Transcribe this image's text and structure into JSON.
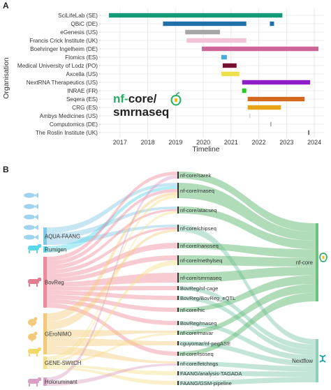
{
  "panelA": {
    "label": "A",
    "ylabel": "Organisation",
    "xlabel": "Timeline",
    "xticks": [
      "2017",
      "2018",
      "2019",
      "2020",
      "2021",
      "2022",
      "2023",
      "2024"
    ],
    "logo": {
      "prefix": "nf-",
      "core": "core/",
      "pipeline": "smrnaseq"
    },
    "orgs": [
      {
        "name": "SciLifeLab (SE)",
        "start": 2016.6,
        "end": 2022.85,
        "color": "#129a79"
      },
      {
        "name": "QBiC (DE)",
        "start": 2018.55,
        "end": 2021.55,
        "color": "#1f6fa8"
      },
      {
        "name": "QBiC (DE) 2",
        "start": 2022.4,
        "end": 2022.55,
        "color": "#1f6fa8",
        "hidden_label": true
      },
      {
        "name": "eGenesis (US)",
        "start": 2019.35,
        "end": 2020.6,
        "color": "#a6a6a6"
      },
      {
        "name": "Francis Crick Institute (UK)",
        "start": 2019.4,
        "end": 2021.55,
        "color": "#f4c2d6"
      },
      {
        "name": "Boehringer Ingelheim (DE)",
        "start": 2019.95,
        "end": 2024.15,
        "color": "#cc6699"
      },
      {
        "name": "Flomics (ES)",
        "start": 2020.65,
        "end": 2020.85,
        "color": "#4aa9e0"
      },
      {
        "name": "Medical University of Lodz (PO)",
        "start": 2020.7,
        "end": 2021.2,
        "color": "#7a1030"
      },
      {
        "name": "Axcella (US)",
        "start": 2020.65,
        "end": 2021.3,
        "color": "#efe04a"
      },
      {
        "name": "NextRNA Therapeutics (US)",
        "start": 2021.4,
        "end": 2023.85,
        "color": "#8e1ec8"
      },
      {
        "name": "INRAE (FR)",
        "start": 2021.4,
        "end": 2021.55,
        "color": "#22cc22"
      },
      {
        "name": "Seqera (ES)",
        "start": 2021.6,
        "end": 2023.65,
        "color": "#d2691e"
      },
      {
        "name": "CRG (ES)",
        "start": 2021.6,
        "end": 2022.8,
        "color": "#e8a317"
      },
      {
        "name": "Ambys Medicines (US)",
        "start": 2021.65,
        "end": 2021.7,
        "color": "#dddddd"
      },
      {
        "name": "Computomics (DE)",
        "start": 2022.42,
        "end": 2022.45,
        "color": "#888888"
      },
      {
        "name": "The Roslin Institute (UK)",
        "start": 2023.78,
        "end": 2023.82,
        "color": "#555555"
      }
    ]
  },
  "panelB": {
    "label": "B",
    "sources": [
      {
        "name": "AQUA-FAANG",
        "color": "#7ec8e3"
      },
      {
        "name": "Rumigen",
        "color": "#5ad8e8"
      },
      {
        "name": "BovReg",
        "color": "#f08a9a"
      },
      {
        "name": "GEroNIMO",
        "color": "#f3c97a"
      },
      {
        "name": "GENE-SWitCH",
        "color": "#f5e08a"
      },
      {
        "name": "Holoruminant",
        "color": "#d9a0c4"
      }
    ],
    "pipelines": [
      "nf-core/sarek",
      "nf-core/rnaseq",
      "nf-core/atacseq",
      "nf-core/chipseq",
      "nf-core/nanoseq",
      "nf-core/methylseq",
      "nf-core/smrnaseq",
      "BovReg/nf-cage",
      "BovReg/BovReg_eQTL",
      "nf-core/hic",
      "BovReg/rnaseq",
      "nf-core/rnavar",
      "cguyomar/nf-pegASE",
      "nf-core/isoseq",
      "nf-core/fetchngs",
      "FAANG/analysis-TAGADA",
      "FAANG/GSM-pipeline"
    ],
    "targets": [
      {
        "name": "nf-core",
        "color": "#6fbf7f"
      },
      {
        "name": "Nextflow",
        "color": "#8fd0b8"
      }
    ]
  }
}
